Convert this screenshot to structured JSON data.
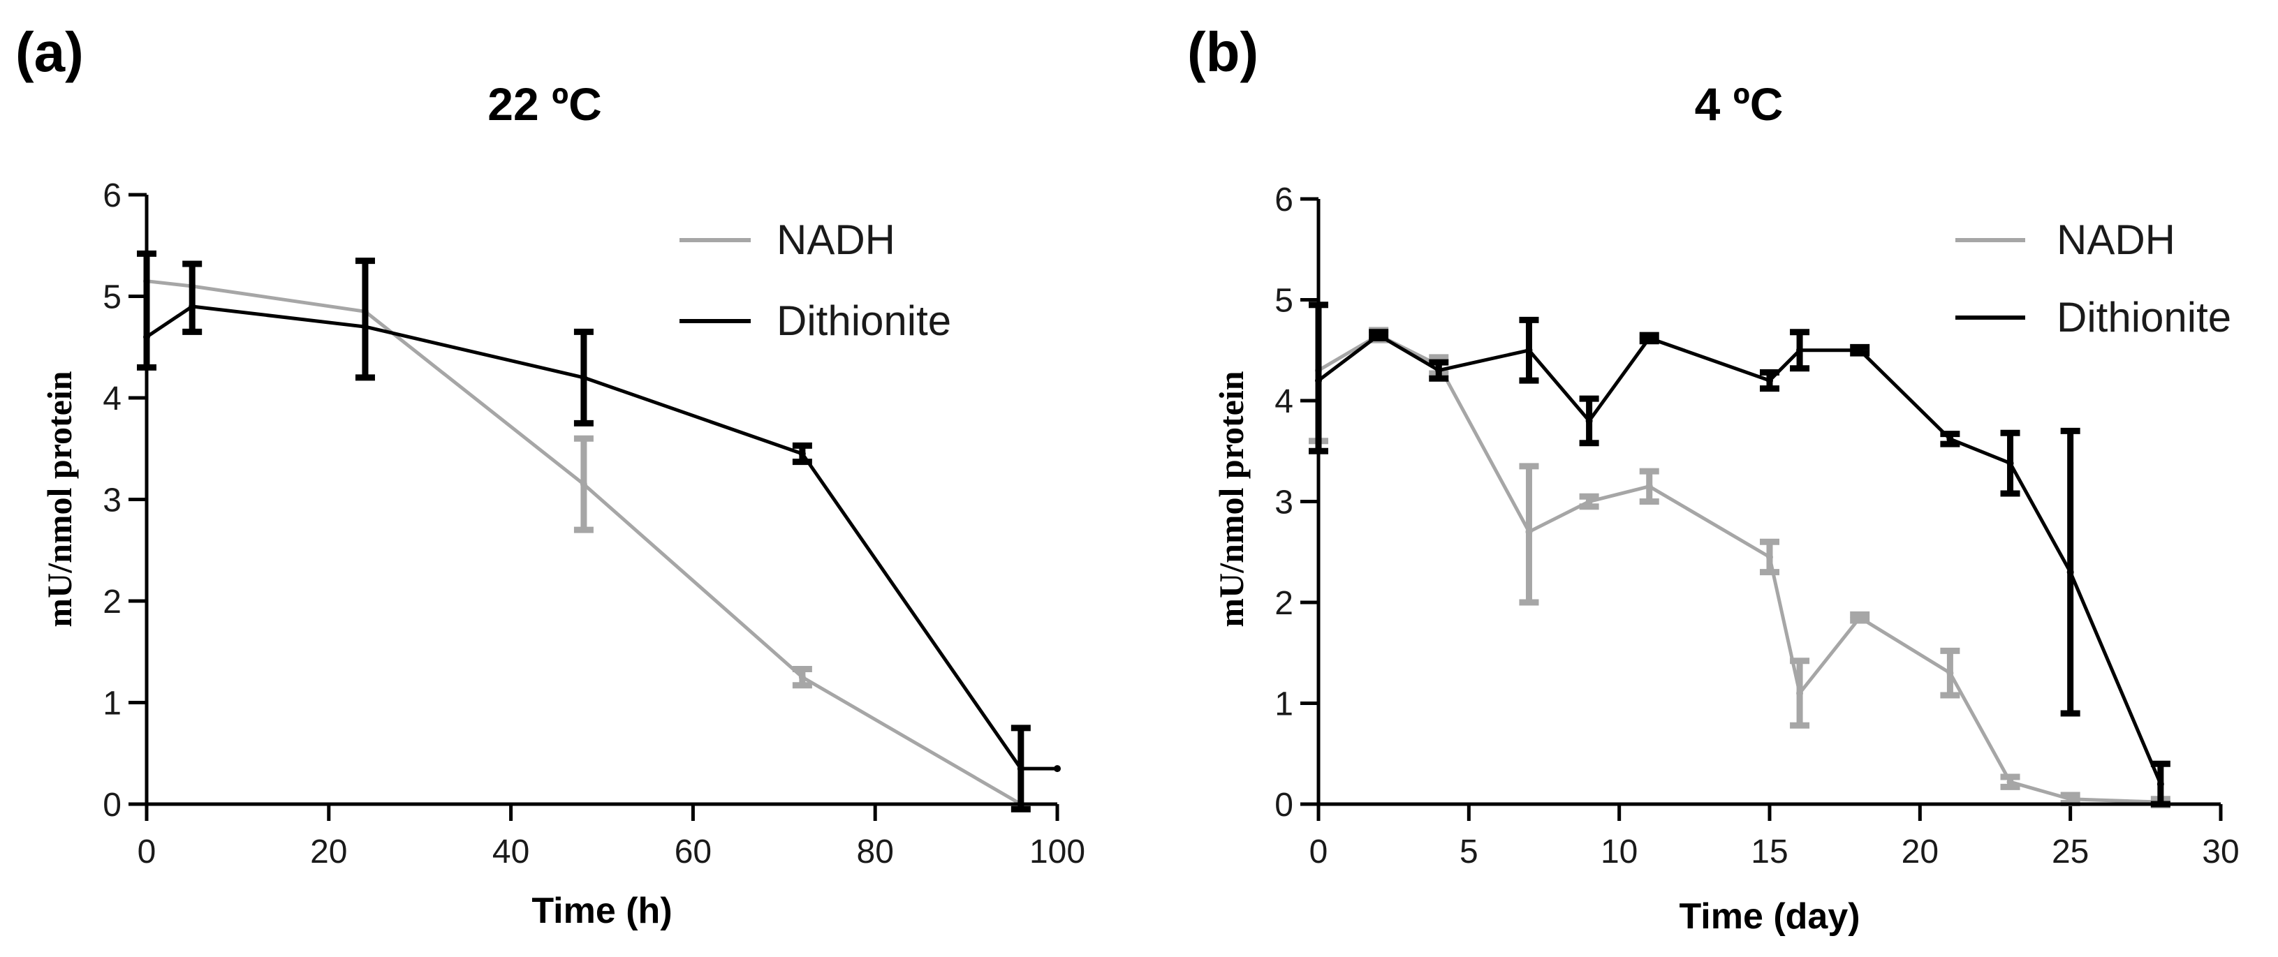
{
  "chart_data": [
    {
      "type": "line",
      "panel_label": "(a)",
      "title": "22 ºC",
      "xlabel": "Time (h)",
      "ylabel": "mU/nmol protein",
      "xlim": [
        0,
        100
      ],
      "ylim": [
        0,
        6
      ],
      "x_ticks": [
        "0",
        "20",
        "40",
        "60",
        "80",
        "100"
      ],
      "y_ticks": [
        "0",
        "1",
        "2",
        "3",
        "4",
        "5",
        "6"
      ],
      "legend_position": "top-right",
      "series": [
        {
          "name": "NADH",
          "color": "#a6a6a6",
          "x": [
            0,
            5,
            24,
            48,
            72,
            96
          ],
          "values": [
            5.15,
            5.1,
            4.85,
            3.15,
            1.25,
            0.0
          ],
          "err_low": [
            null,
            null,
            null,
            0.45,
            0.08,
            null
          ],
          "err_high": [
            null,
            null,
            null,
            0.45,
            0.08,
            null
          ]
        },
        {
          "name": "Dithionite",
          "color": "#000000",
          "x": [
            0,
            5,
            24,
            48,
            72,
            96,
            100
          ],
          "values": [
            4.6,
            4.9,
            4.7,
            4.2,
            3.45,
            0.35,
            0.35
          ],
          "err_low": [
            0.3,
            0.25,
            0.5,
            0.45,
            0.08,
            0.4,
            null
          ],
          "err_high": [
            0.82,
            0.42,
            0.65,
            0.45,
            0.08,
            0.4,
            null
          ]
        }
      ]
    },
    {
      "type": "line",
      "panel_label": "(b)",
      "title": "4 ºC",
      "xlabel": "Time (day)",
      "ylabel": "mU/nmol protein",
      "xlim": [
        0,
        30
      ],
      "ylim": [
        0,
        6
      ],
      "x_ticks": [
        "0",
        "5",
        "10",
        "15",
        "20",
        "25",
        "30"
      ],
      "y_ticks": [
        "0",
        "1",
        "2",
        "3",
        "4",
        "5",
        "6"
      ],
      "legend_position": "top-right",
      "series": [
        {
          "name": "NADH",
          "color": "#a6a6a6",
          "x": [
            0,
            2,
            4,
            7,
            9,
            11,
            15,
            16,
            18,
            21,
            23,
            25,
            28
          ],
          "values": [
            4.3,
            4.65,
            4.35,
            2.7,
            3.0,
            3.15,
            2.45,
            1.1,
            1.85,
            1.3,
            0.22,
            0.05,
            0.02
          ],
          "err_low": [
            0.7,
            0.05,
            0.08,
            0.7,
            0.05,
            0.15,
            0.15,
            0.32,
            0.03,
            0.22,
            0.05,
            0.04,
            0.03
          ],
          "err_high": [
            0.65,
            0.05,
            0.08,
            0.65,
            0.05,
            0.15,
            0.15,
            0.32,
            0.03,
            0.22,
            0.05,
            0.04,
            0.03
          ]
        },
        {
          "name": "Dithionite",
          "color": "#000000",
          "x": [
            0,
            2,
            4,
            7,
            9,
            11,
            15,
            16,
            18,
            21,
            23,
            25,
            28
          ],
          "values": [
            4.2,
            4.65,
            4.3,
            4.5,
            3.8,
            4.62,
            4.2,
            4.5,
            4.5,
            3.62,
            3.38,
            2.3,
            0.2
          ],
          "err_low": [
            0.7,
            0.03,
            0.08,
            0.3,
            0.22,
            0.03,
            0.08,
            0.18,
            0.03,
            0.05,
            0.3,
            1.4,
            0.2
          ],
          "err_high": [
            0.75,
            0.03,
            0.08,
            0.3,
            0.22,
            0.03,
            0.08,
            0.18,
            0.03,
            0.05,
            0.3,
            1.4,
            0.2
          ]
        }
      ]
    }
  ]
}
